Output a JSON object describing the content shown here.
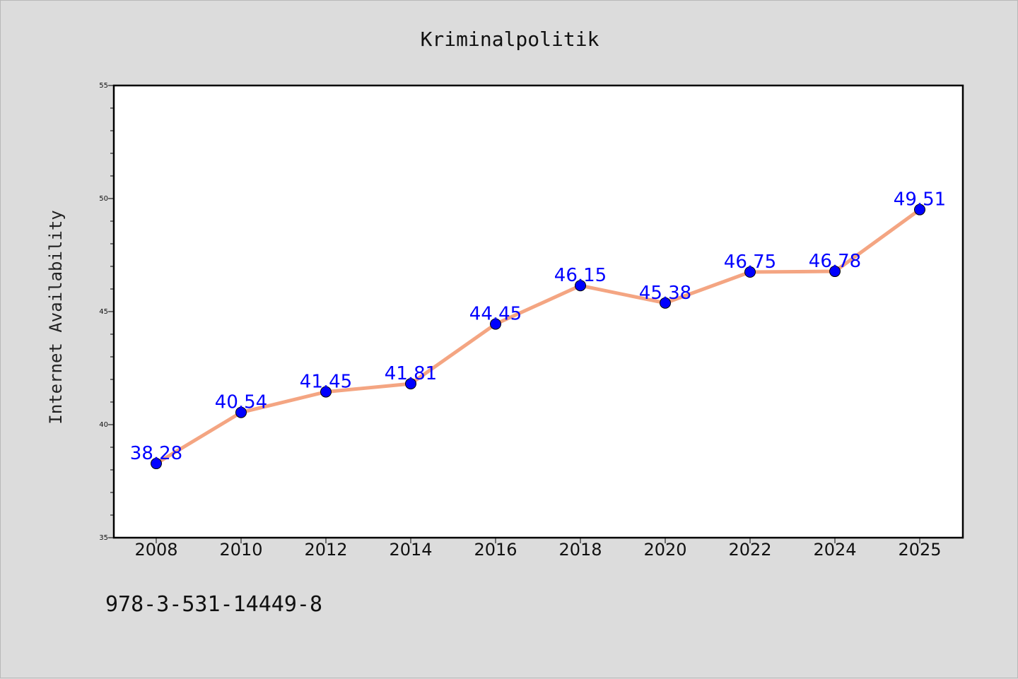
{
  "chart_data": {
    "type": "line",
    "title": "Kriminalpolitik",
    "ylabel": "Internet Availability",
    "xlabel": "",
    "categories": [
      "2008",
      "2010",
      "2012",
      "2014",
      "2016",
      "2018",
      "2020",
      "2022",
      "2024",
      "2025"
    ],
    "values": [
      38.28,
      40.54,
      41.45,
      41.81,
      44.45,
      46.15,
      45.38,
      46.75,
      46.78,
      49.51
    ],
    "data_labels": [
      "38.28",
      "40.54",
      "41.45",
      "41.81",
      "44.45",
      "46.15",
      "45.38",
      "46.75",
      "46.78",
      "49.51"
    ],
    "ylim": [
      35,
      55
    ],
    "yticks": [
      35,
      40,
      45,
      50,
      55
    ],
    "grid": false,
    "line_color": "#f4a582",
    "marker_color": "#0000ff",
    "label_color": "#0000ff",
    "background_color": "#dcdcdc",
    "plot_background_color": "#ffffff"
  },
  "footer": {
    "code": "978-3-531-14449-8"
  }
}
